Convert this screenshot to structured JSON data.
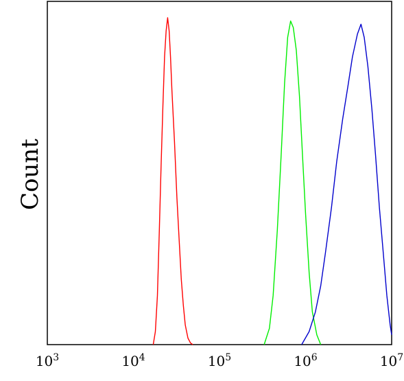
{
  "chart_data": {
    "type": "line",
    "title": "",
    "xlabel": "",
    "ylabel": "Count",
    "x_scale": "log",
    "xlim": [
      1000,
      10000000
    ],
    "ylim": [
      0,
      1.05
    ],
    "grid": false,
    "legend": "none",
    "x_ticks": [
      {
        "value": 1000,
        "base": "10",
        "exp": "3"
      },
      {
        "value": 10000,
        "base": "10",
        "exp": "4"
      },
      {
        "value": 100000,
        "base": "10",
        "exp": "5"
      },
      {
        "value": 1000000,
        "base": "10",
        "exp": "6"
      },
      {
        "value": 10000000,
        "base": "10",
        "exp": "7"
      }
    ],
    "series": [
      {
        "color": "#ff0000",
        "x": [
          17000,
          18000,
          19000,
          20000,
          21000,
          22000,
          23000,
          24000,
          25000,
          26000,
          27000,
          28000,
          30000,
          32000,
          34000,
          36000,
          38000,
          40000,
          43000,
          46000,
          49000
        ],
        "y": [
          0.0,
          0.04,
          0.15,
          0.35,
          0.55,
          0.73,
          0.88,
          0.96,
          1.0,
          0.96,
          0.88,
          0.78,
          0.62,
          0.45,
          0.32,
          0.2,
          0.12,
          0.06,
          0.02,
          0.005,
          0.0
        ]
      },
      {
        "color": "#00ee00",
        "x": [
          330000,
          380000,
          420000,
          470000,
          520000,
          570000,
          620000,
          670000,
          720000,
          780000,
          850000,
          920000,
          1000000,
          1100000,
          1200000,
          1350000,
          1500000
        ],
        "y": [
          0.0,
          0.05,
          0.15,
          0.35,
          0.58,
          0.8,
          0.94,
          0.99,
          0.97,
          0.9,
          0.76,
          0.58,
          0.4,
          0.22,
          0.1,
          0.03,
          0.0
        ]
      },
      {
        "color": "#0000cc",
        "x": [
          900000,
          1100000,
          1300000,
          1500000,
          1700000,
          2000000,
          2300000,
          2700000,
          3100000,
          3500000,
          4000000,
          4400000,
          4800000,
          5300000,
          5900000,
          6500000,
          7200000,
          8000000,
          8800000,
          9600000,
          10000000
        ],
        "y": [
          0.0,
          0.04,
          0.1,
          0.18,
          0.28,
          0.42,
          0.56,
          0.69,
          0.79,
          0.88,
          0.95,
          0.98,
          0.94,
          0.85,
          0.72,
          0.58,
          0.42,
          0.28,
          0.15,
          0.06,
          0.03
        ]
      }
    ]
  }
}
